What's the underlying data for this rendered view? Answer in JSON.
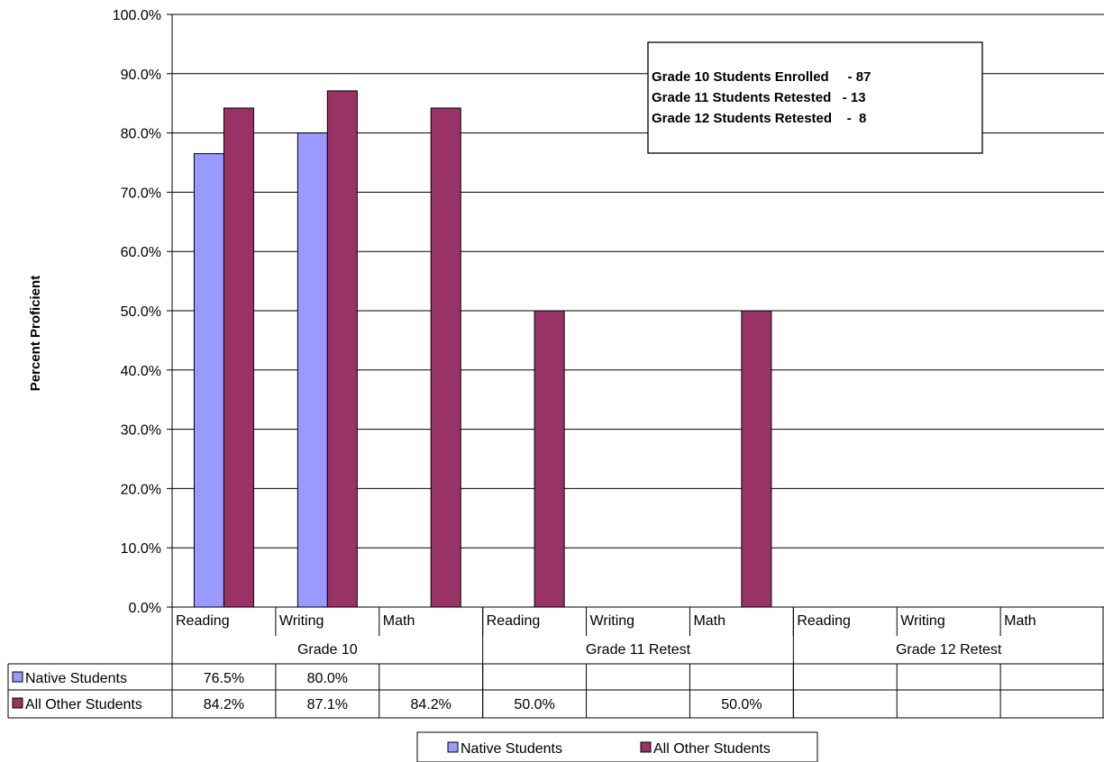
{
  "chart_data": {
    "type": "bar",
    "ylabel": "Percent Proficient",
    "ylim": [
      0,
      100
    ],
    "yticks": [
      "0.0%",
      "10.0%",
      "20.0%",
      "30.0%",
      "40.0%",
      "50.0%",
      "60.0%",
      "70.0%",
      "80.0%",
      "90.0%",
      "100.0%"
    ],
    "grid": true,
    "categories": [
      "Reading",
      "Writing",
      "Math",
      "Reading",
      "Writing",
      "Math",
      "Reading",
      "Writing",
      "Math"
    ],
    "groups": [
      "Grade 10",
      "Grade 11 Retest",
      "Grade 12 Retest"
    ],
    "series": [
      {
        "name": "Native Students",
        "color": "#9999ff",
        "values": [
          76.5,
          80.0,
          null,
          null,
          null,
          null,
          null,
          null,
          null
        ],
        "labels": [
          "76.5%",
          "80.0%",
          "",
          "",
          "",
          "",
          "",
          "",
          ""
        ]
      },
      {
        "name": "All Other Students",
        "color": "#993366",
        "values": [
          84.2,
          87.1,
          84.2,
          50.0,
          null,
          50.0,
          null,
          null,
          null
        ],
        "labels": [
          "84.2%",
          "87.1%",
          "84.2%",
          "50.0%",
          "",
          "50.0%",
          "",
          "",
          ""
        ]
      }
    ],
    "annotation": [
      "Grade 10 Students Enrolled     - 87",
      "Grade 11 Students Retested   - 13",
      "Grade 12 Students Retested    -  8"
    ],
    "legend_position": "bottom"
  }
}
